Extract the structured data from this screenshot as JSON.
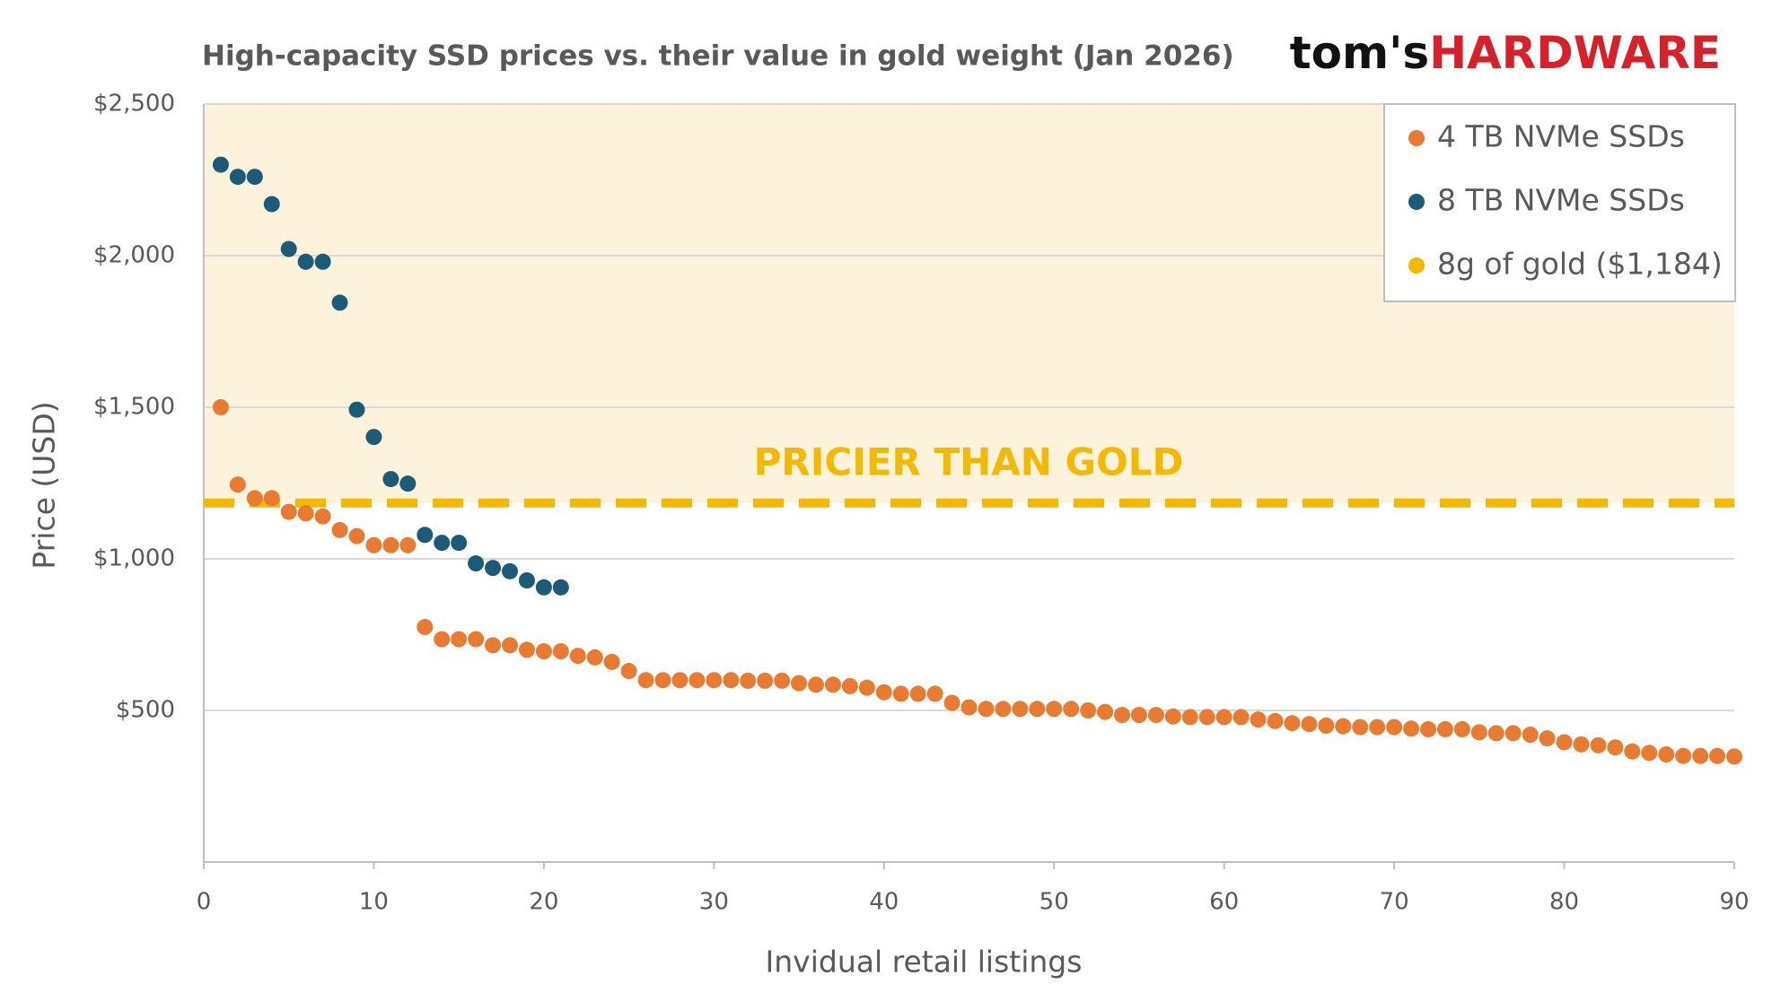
{
  "chart_data": {
    "type": "scatter",
    "title": "High-capacity SSD prices vs. their value in gold weight (Jan 2026)",
    "logo": {
      "prefix": "tom's",
      "name": "HARDWARE"
    },
    "x_label": "Invidual retail listings",
    "y_label": "Price (USD)",
    "annotation": "PRICIER THAN GOLD",
    "xlim": [
      0,
      90
    ],
    "xticks": [
      0,
      10,
      20,
      30,
      40,
      50,
      60,
      70,
      80,
      90
    ],
    "ylim": [
      0,
      2500
    ],
    "yticks": [
      {
        "value": 500,
        "label": "$500"
      },
      {
        "value": 1000,
        "label": "$1,000"
      },
      {
        "value": 1500,
        "label": "$1,500"
      },
      {
        "value": 2000,
        "label": "$2,000"
      },
      {
        "value": 2500,
        "label": "$2,500"
      }
    ],
    "grid": true,
    "legend": "top-right",
    "series": [
      {
        "name": "4 TB NVMe SSDs",
        "color": "#e87a32",
        "x": [
          1,
          2,
          3,
          4,
          5,
          6,
          7,
          8,
          9,
          10,
          11,
          12,
          13,
          14,
          15,
          16,
          17,
          18,
          19,
          20,
          21,
          22,
          23,
          24,
          25,
          26,
          27,
          28,
          29,
          30,
          31,
          32,
          33,
          34,
          35,
          36,
          37,
          38,
          39,
          40,
          41,
          42,
          43,
          44,
          45,
          46,
          47,
          48,
          49,
          50,
          51,
          52,
          53,
          54,
          55,
          56,
          57,
          58,
          59,
          60,
          61,
          62,
          63,
          64,
          65,
          66,
          67,
          68,
          69,
          70,
          71,
          72,
          73,
          74,
          75,
          76,
          77,
          78,
          79,
          80,
          81,
          82,
          83,
          84,
          85,
          86,
          87,
          88,
          89,
          90
        ],
        "values": [
          1500,
          1245,
          1200,
          1200,
          1155,
          1150,
          1140,
          1095,
          1075,
          1045,
          1045,
          1045,
          775,
          735,
          735,
          735,
          715,
          715,
          700,
          695,
          695,
          680,
          675,
          660,
          630,
          600,
          600,
          600,
          600,
          600,
          600,
          598,
          598,
          598,
          590,
          585,
          585,
          580,
          575,
          560,
          555,
          555,
          555,
          525,
          510,
          505,
          505,
          505,
          505,
          505,
          505,
          500,
          495,
          485,
          485,
          485,
          480,
          478,
          478,
          478,
          478,
          470,
          465,
          458,
          455,
          450,
          448,
          445,
          445,
          445,
          440,
          438,
          438,
          438,
          428,
          425,
          425,
          420,
          408,
          395,
          388,
          385,
          378,
          365,
          360,
          355,
          350,
          350,
          350,
          348
        ]
      },
      {
        "name": "8 TB NVMe SSDs",
        "color": "#1b5b78",
        "x": [
          1,
          2,
          3,
          4,
          5,
          6,
          7,
          8,
          9,
          10,
          11,
          12,
          13,
          14,
          15,
          16,
          17,
          18,
          19,
          20,
          21
        ],
        "values": [
          2300,
          2260,
          2260,
          2170,
          2022,
          1980,
          1980,
          1845,
          1492,
          1402,
          1263,
          1248,
          1079,
          1053,
          1053,
          985,
          970,
          959,
          929,
          906,
          906
        ]
      }
    ],
    "hline": {
      "name": "8g of gold ($1,184)",
      "value": 1184,
      "color": "#f5b800",
      "shade": "#fdf3dc"
    }
  }
}
